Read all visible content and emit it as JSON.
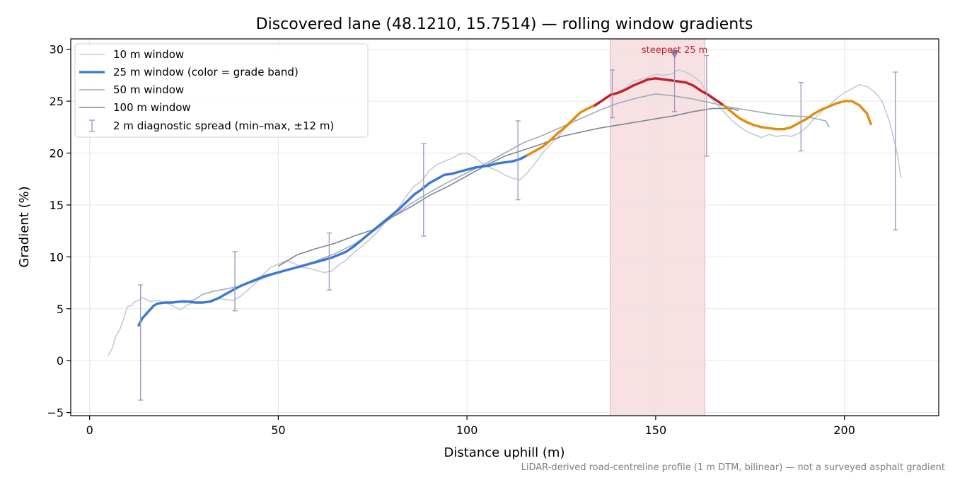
{
  "chart_data": {
    "type": "line",
    "title": "Discovered lane (48.1210, 15.7514) — rolling window gradients",
    "xlabel": "Distance uphill (m)",
    "ylabel": "Gradient (%)",
    "xlim": [
      -5,
      225
    ],
    "ylim": [
      -5.3,
      31
    ],
    "x_ticks": [
      0,
      50,
      100,
      150,
      200
    ],
    "y_ticks": [
      -5,
      0,
      5,
      10,
      15,
      20,
      25,
      30
    ],
    "x_tick_labels": [
      "0",
      "50",
      "100",
      "150",
      "200"
    ],
    "y_tick_labels": [
      "−5",
      "0",
      "5",
      "10",
      "15",
      "20",
      "25",
      "30"
    ],
    "grid": true,
    "legend_position": "top-left",
    "colors": {
      "w10": "#c3c9d6",
      "w50": "#a1aab8",
      "w100": "#7d8595",
      "band_low": "#3a78d4",
      "band_mid": "#e08c10",
      "band_high": "#c0202a",
      "errorbar": "#a29bc0",
      "highlight": "#f4d7da"
    },
    "series": [
      {
        "name": "10 m window",
        "color": "#c3c9d6",
        "points": [
          [
            5,
            0.5
          ],
          [
            6,
            1.2
          ],
          [
            7,
            2.4
          ],
          [
            8,
            3.0
          ],
          [
            9,
            4.0
          ],
          [
            10,
            5.2
          ],
          [
            11,
            5.3
          ],
          [
            12,
            5.7
          ],
          [
            13,
            5.8
          ],
          [
            14,
            6.1
          ],
          [
            15,
            5.9
          ],
          [
            16,
            5.7
          ],
          [
            18,
            5.8
          ],
          [
            20,
            5.6
          ],
          [
            22,
            5.3
          ],
          [
            24,
            4.9
          ],
          [
            26,
            5.4
          ],
          [
            28,
            5.6
          ],
          [
            30,
            5.6
          ],
          [
            32,
            5.8
          ],
          [
            34,
            6.0
          ],
          [
            36,
            5.9
          ],
          [
            38,
            5.8
          ],
          [
            40,
            6.2
          ],
          [
            42,
            6.8
          ],
          [
            44,
            7.5
          ],
          [
            46,
            8.3
          ],
          [
            48,
            9.0
          ],
          [
            50,
            9.3
          ],
          [
            52,
            9.6
          ],
          [
            54,
            9.4
          ],
          [
            56,
            9.0
          ],
          [
            58,
            8.9
          ],
          [
            60,
            8.7
          ],
          [
            62,
            8.5
          ],
          [
            64,
            8.6
          ],
          [
            66,
            9.2
          ],
          [
            68,
            9.7
          ],
          [
            70,
            10.4
          ],
          [
            72,
            11.0
          ],
          [
            74,
            11.6
          ],
          [
            76,
            12.3
          ],
          [
            78,
            13.2
          ],
          [
            80,
            13.9
          ],
          [
            82,
            14.8
          ],
          [
            84,
            15.9
          ],
          [
            86,
            16.8
          ],
          [
            88,
            17.3
          ],
          [
            90,
            18.3
          ],
          [
            92,
            18.9
          ],
          [
            94,
            19.2
          ],
          [
            96,
            19.5
          ],
          [
            98,
            19.9
          ],
          [
            100,
            20.0
          ],
          [
            102,
            19.6
          ],
          [
            104,
            19.0
          ],
          [
            106,
            18.6
          ],
          [
            108,
            18.3
          ],
          [
            110,
            17.9
          ],
          [
            112,
            17.6
          ],
          [
            114,
            17.4
          ],
          [
            116,
            18.1
          ],
          [
            118,
            19.0
          ],
          [
            120,
            20.0
          ],
          [
            122,
            20.8
          ],
          [
            124,
            21.5
          ],
          [
            126,
            22.4
          ],
          [
            128,
            23.0
          ],
          [
            130,
            23.9
          ],
          [
            132,
            24.3
          ],
          [
            134,
            24.8
          ],
          [
            136,
            25.1
          ],
          [
            138,
            25.6
          ],
          [
            140,
            25.9
          ],
          [
            142,
            26.3
          ],
          [
            144,
            26.9
          ],
          [
            146,
            27.1
          ],
          [
            148,
            27.3
          ],
          [
            150,
            27.6
          ],
          [
            152,
            27.5
          ],
          [
            154,
            27.6
          ],
          [
            156,
            28.0
          ],
          [
            158,
            27.8
          ],
          [
            160,
            27.4
          ],
          [
            162,
            26.8
          ],
          [
            164,
            25.5
          ],
          [
            166,
            24.8
          ],
          [
            168,
            24.0
          ],
          [
            170,
            23.2
          ],
          [
            172,
            22.6
          ],
          [
            174,
            22.1
          ],
          [
            176,
            21.8
          ],
          [
            178,
            21.5
          ],
          [
            180,
            21.8
          ],
          [
            182,
            21.6
          ],
          [
            184,
            21.7
          ],
          [
            186,
            21.6
          ],
          [
            188,
            21.9
          ],
          [
            190,
            22.5
          ],
          [
            192,
            23.3
          ],
          [
            194,
            24.0
          ],
          [
            196,
            24.6
          ],
          [
            198,
            25.3
          ],
          [
            200,
            25.8
          ],
          [
            202,
            26.2
          ],
          [
            204,
            26.6
          ],
          [
            206,
            26.4
          ],
          [
            208,
            25.9
          ],
          [
            210,
            25.0
          ],
          [
            212,
            23.0
          ],
          [
            214,
            20.0
          ],
          [
            215,
            17.6
          ]
        ]
      },
      {
        "name": "25 m window (color = grade band)",
        "color": "#3a78d4",
        "points": [
          [
            13,
            3.4
          ],
          [
            14,
            4.1
          ],
          [
            15,
            4.5
          ],
          [
            16,
            4.9
          ],
          [
            17,
            5.3
          ],
          [
            18,
            5.5
          ],
          [
            20,
            5.6
          ],
          [
            22,
            5.6
          ],
          [
            24,
            5.7
          ],
          [
            26,
            5.7
          ],
          [
            28,
            5.6
          ],
          [
            30,
            5.6
          ],
          [
            32,
            5.7
          ],
          [
            34,
            6.0
          ],
          [
            36,
            6.4
          ],
          [
            38,
            6.8
          ],
          [
            40,
            7.2
          ],
          [
            42,
            7.5
          ],
          [
            44,
            7.8
          ],
          [
            46,
            8.1
          ],
          [
            48,
            8.3
          ],
          [
            50,
            8.5
          ],
          [
            52,
            8.7
          ],
          [
            54,
            8.9
          ],
          [
            56,
            9.1
          ],
          [
            58,
            9.3
          ],
          [
            60,
            9.5
          ],
          [
            62,
            9.7
          ],
          [
            64,
            9.9
          ],
          [
            66,
            10.2
          ],
          [
            68,
            10.5
          ],
          [
            70,
            11.0
          ],
          [
            72,
            11.6
          ],
          [
            74,
            12.2
          ],
          [
            76,
            12.8
          ],
          [
            78,
            13.4
          ],
          [
            80,
            14.0
          ],
          [
            82,
            14.6
          ],
          [
            84,
            15.3
          ],
          [
            86,
            16.0
          ],
          [
            88,
            16.5
          ],
          [
            90,
            17.1
          ],
          [
            92,
            17.5
          ],
          [
            94,
            17.9
          ],
          [
            96,
            18.0
          ],
          [
            98,
            18.2
          ],
          [
            100,
            18.4
          ],
          [
            102,
            18.6
          ],
          [
            104,
            18.7
          ],
          [
            106,
            18.8
          ],
          [
            108,
            19.0
          ],
          [
            110,
            19.1
          ],
          [
            112,
            19.2
          ],
          [
            114,
            19.4
          ],
          [
            116,
            19.8
          ],
          [
            118,
            20.2
          ],
          [
            120,
            20.6
          ],
          [
            122,
            21.2
          ],
          [
            124,
            21.9
          ],
          [
            126,
            22.5
          ],
          [
            128,
            23.2
          ],
          [
            130,
            23.9
          ],
          [
            132,
            24.3
          ],
          [
            134,
            24.6
          ],
          [
            136,
            25.1
          ],
          [
            138,
            25.6
          ],
          [
            140,
            25.8
          ],
          [
            142,
            26.1
          ],
          [
            144,
            26.5
          ],
          [
            146,
            26.8
          ],
          [
            148,
            27.1
          ],
          [
            150,
            27.2
          ],
          [
            152,
            27.1
          ],
          [
            154,
            27.0
          ],
          [
            156,
            26.9
          ],
          [
            158,
            26.8
          ],
          [
            160,
            26.5
          ],
          [
            162,
            26.0
          ],
          [
            164,
            25.6
          ],
          [
            166,
            25.1
          ],
          [
            168,
            24.6
          ],
          [
            170,
            24.0
          ],
          [
            172,
            23.4
          ],
          [
            174,
            23.0
          ],
          [
            176,
            22.7
          ],
          [
            178,
            22.5
          ],
          [
            180,
            22.4
          ],
          [
            182,
            22.3
          ],
          [
            184,
            22.3
          ],
          [
            186,
            22.5
          ],
          [
            188,
            22.9
          ],
          [
            190,
            23.3
          ],
          [
            192,
            23.8
          ],
          [
            194,
            24.2
          ],
          [
            196,
            24.5
          ],
          [
            198,
            24.8
          ],
          [
            200,
            25.0
          ],
          [
            202,
            25.0
          ],
          [
            204,
            24.6
          ],
          [
            206,
            23.8
          ],
          [
            207,
            22.8
          ]
        ]
      },
      {
        "name": "50 m window",
        "color": "#a1aab8",
        "points": [
          [
            25,
            5.6
          ],
          [
            28,
            5.9
          ],
          [
            30,
            6.4
          ],
          [
            33,
            6.7
          ],
          [
            36,
            6.9
          ],
          [
            40,
            7.2
          ],
          [
            45,
            7.8
          ],
          [
            50,
            8.5
          ],
          [
            55,
            9.0
          ],
          [
            60,
            9.6
          ],
          [
            65,
            10.3
          ],
          [
            70,
            11.2
          ],
          [
            75,
            12.4
          ],
          [
            80,
            13.8
          ],
          [
            85,
            15.1
          ],
          [
            90,
            16.2
          ],
          [
            95,
            17.2
          ],
          [
            100,
            18.1
          ],
          [
            105,
            19.0
          ],
          [
            110,
            20.0
          ],
          [
            115,
            21.0
          ],
          [
            120,
            21.7
          ],
          [
            125,
            22.5
          ],
          [
            130,
            23.3
          ],
          [
            135,
            24.1
          ],
          [
            140,
            24.8
          ],
          [
            145,
            25.3
          ],
          [
            150,
            25.7
          ],
          [
            155,
            25.5
          ],
          [
            160,
            25.2
          ],
          [
            165,
            24.8
          ],
          [
            170,
            24.4
          ],
          [
            175,
            24.1
          ],
          [
            180,
            23.8
          ],
          [
            185,
            23.6
          ],
          [
            190,
            23.5
          ],
          [
            195,
            23.1
          ],
          [
            196,
            22.5
          ]
        ]
      },
      {
        "name": "100 m window",
        "color": "#7d8595",
        "points": [
          [
            50,
            9.1
          ],
          [
            55,
            10.2
          ],
          [
            60,
            10.8
          ],
          [
            65,
            11.3
          ],
          [
            70,
            12.0
          ],
          [
            75,
            12.6
          ],
          [
            80,
            13.8
          ],
          [
            85,
            14.8
          ],
          [
            90,
            15.9
          ],
          [
            95,
            16.8
          ],
          [
            100,
            17.8
          ],
          [
            105,
            18.8
          ],
          [
            110,
            19.7
          ],
          [
            115,
            20.3
          ],
          [
            120,
            20.9
          ],
          [
            125,
            21.6
          ],
          [
            130,
            22.0
          ],
          [
            135,
            22.4
          ],
          [
            140,
            22.7
          ],
          [
            145,
            23.0
          ],
          [
            150,
            23.3
          ],
          [
            155,
            23.6
          ],
          [
            160,
            24.0
          ],
          [
            165,
            24.3
          ],
          [
            170,
            24.3
          ],
          [
            172,
            24.1
          ]
        ]
      }
    ],
    "grade_bands": [
      {
        "color": "#3a78d4",
        "x_range": [
          13,
          116
        ]
      },
      {
        "color": "#e08c10",
        "x_range": [
          116,
          134
        ]
      },
      {
        "color": "#c0202a",
        "x_range": [
          134,
          168
        ]
      },
      {
        "color": "#e08c10",
        "x_range": [
          168,
          207
        ]
      }
    ],
    "error_bars": {
      "name": "2 m diagnostic spread (min–max, ±12 m)",
      "color": "#a29bc0",
      "points": [
        {
          "x": 13.5,
          "low": -3.8,
          "high": 7.3
        },
        {
          "x": 38.5,
          "low": 4.8,
          "high": 10.5
        },
        {
          "x": 63.5,
          "low": 6.8,
          "high": 12.3
        },
        {
          "x": 88.5,
          "low": 12.0,
          "high": 20.9
        },
        {
          "x": 113.5,
          "low": 15.5,
          "high": 23.1
        },
        {
          "x": 138.5,
          "low": 23.4,
          "high": 28.0
        },
        {
          "x": 155,
          "low": 24.0,
          "high": 29.5
        },
        {
          "x": 163.5,
          "low": 19.7,
          "high": 29.4
        },
        {
          "x": 188.5,
          "low": 20.2,
          "high": 26.8
        },
        {
          "x": 213.5,
          "low": 12.6,
          "high": 27.8
        }
      ]
    },
    "highlight_region": {
      "x_range": [
        138,
        163
      ]
    },
    "annotation": {
      "text": "steepest 25 m",
      "x": 155,
      "y": 29.5
    },
    "footnote": "LiDAR-derived road-centreline profile (1 m DTM, bilinear) — not a surveyed asphalt gradient"
  }
}
